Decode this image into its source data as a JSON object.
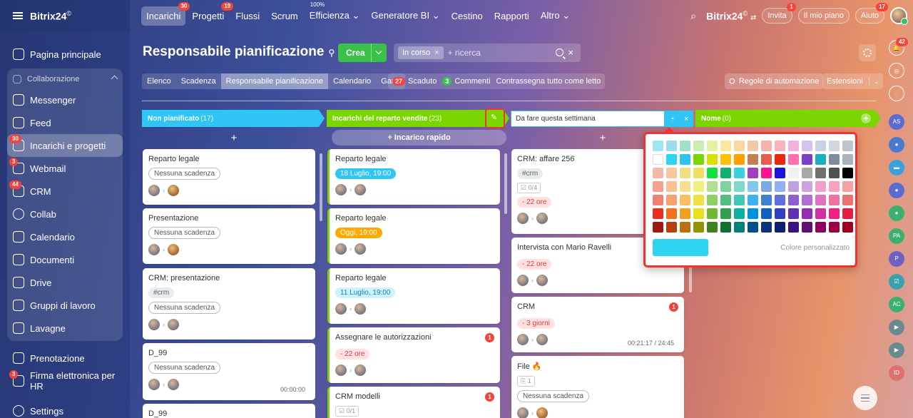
{
  "topbar": {
    "brand": "Bitrix24",
    "brand_sup": "©",
    "nav": [
      {
        "label": "Incarichi",
        "badge": "30",
        "active": true
      },
      {
        "label": "Progetti",
        "badge": "19"
      },
      {
        "label": "Flussi"
      },
      {
        "label": "Scrum"
      },
      {
        "label": "Efficienza",
        "pre": "100%",
        "dropdown": true
      },
      {
        "label": "Generatore BI",
        "dropdown": true
      },
      {
        "label": "Cestino"
      },
      {
        "label": "Rapporti"
      },
      {
        "label": "Altro",
        "dropdown": true
      }
    ],
    "right_brand": "Bitrix24",
    "invite_label": "Invita",
    "invite_badge": "1",
    "plan_label": "Il mio piano",
    "help_label": "Aiuto",
    "help_badge": "17"
  },
  "sidebar": {
    "items": [
      {
        "label": "Pagina principale",
        "icon": "home-icon"
      },
      {
        "label": "Collaborazione",
        "icon": "collab-icon",
        "group": true
      },
      {
        "label": "Messenger",
        "icon": "messenger-icon"
      },
      {
        "label": "Feed",
        "icon": "feed-icon"
      },
      {
        "label": "Incarichi e progetti",
        "icon": "tasks-icon",
        "badge": "30",
        "active": true
      },
      {
        "label": "Webmail",
        "icon": "mail-icon",
        "badge": "3"
      },
      {
        "label": "CRM",
        "icon": "crm-icon",
        "badge": "44"
      },
      {
        "label": "Collab",
        "icon": "collab2-icon"
      },
      {
        "label": "Calendario",
        "icon": "calendar-icon"
      },
      {
        "label": "Documenti",
        "icon": "documents-icon"
      },
      {
        "label": "Drive",
        "icon": "drive-icon"
      },
      {
        "label": "Gruppi di lavoro",
        "icon": "groups-icon"
      },
      {
        "label": "Lavagne",
        "icon": "boards-icon"
      },
      {
        "label": "Prenotazione",
        "icon": "booking-icon"
      },
      {
        "label": "Firma elettronica per HR",
        "icon": "sign-icon",
        "badge": "3"
      },
      {
        "label": "Settings",
        "icon": "settings-icon"
      }
    ]
  },
  "header": {
    "title": "Responsabile pianificazione",
    "create_label": "Crea",
    "filter_chip": "In corso",
    "search_placeholder": "+ ricerca"
  },
  "views": [
    "Elenco",
    "Scadenza",
    "Responsabile pianificazione",
    "Calendario",
    "Gantt"
  ],
  "alerts": {
    "overdue_count": "27",
    "overdue_label": "Scaduto",
    "comments_count": "3",
    "comments_label": "Commenti",
    "mark_read": "Contrassegna tutto come letto"
  },
  "toolbar": {
    "automation": "Regole di automazione",
    "extensions": "Estensioni"
  },
  "columns": [
    {
      "title": "Non pianificato",
      "count": "(17)",
      "color": "#2fc6f6"
    },
    {
      "title": "Incarichi del reparto vendite",
      "count": "(23)",
      "color": "#7bd500"
    },
    {
      "title": "Da fare questa settimana",
      "color": "#2fc6f6",
      "editing": true
    },
    {
      "title": "Nome",
      "count": "(0)",
      "color": "#7bd500"
    }
  ],
  "quick_task": "+ Incarico rapido",
  "cards_col1": [
    {
      "title": "Reparto legale",
      "tag": "Nessuna scadenza"
    },
    {
      "title": "Presentazione",
      "tag": "Nessuna scadenza"
    },
    {
      "title": "CRM: presentazione",
      "hashtag": "#crm",
      "tag": "Nessuna scadenza"
    },
    {
      "title": "D_99",
      "tag": "Nessuna scadenza",
      "timer": "00:00:00"
    },
    {
      "title": "D_99"
    }
  ],
  "cards_col2": [
    {
      "title": "Reparto legale",
      "tag": "18 Luglio, 19:00"
    },
    {
      "title": "Reparto legale",
      "tag": "Oggi, 19:00"
    },
    {
      "title": "Reparto legale",
      "tag": "11 Luglio, 19:00"
    },
    {
      "title": "Assegnare le autorizzazioni",
      "tag": "- 22 ore",
      "badge": "1"
    },
    {
      "title": "CRM modelli",
      "badge": "1",
      "sub": "0/1"
    }
  ],
  "cards_col3": [
    {
      "title": "CRM: affare 256",
      "hashtag": "#crm",
      "sub": "0/4",
      "tag": "- 22 ore"
    },
    {
      "title": "Intervista con Mario Ravelli",
      "tag": "- 22 ore"
    },
    {
      "title": "CRM",
      "tag": "- 3 giorni",
      "badge": "1",
      "timer": "00:21:17 / 24:45"
    },
    {
      "title": "File",
      "sub": "1",
      "tag": "Nessuna scadenza"
    }
  ],
  "picker": {
    "custom_label": "Colore personalizzato",
    "selected": "#2fd4f0",
    "swatches": [
      "#9fe6f5",
      "#9fdcea",
      "#9fe0c8",
      "#c9ecb0",
      "#e8f0a0",
      "#fbe7a0",
      "#fbd6a0",
      "#f2c9a8",
      "#f5b3ab",
      "#fab3bd",
      "#f0b3dc",
      "#d6c2ee",
      "#c9d3e8",
      "#d0d6dc",
      "#bcc4cc",
      "#ffffff",
      "#2fd4f0",
      "#2ec4ef",
      "#7bd500",
      "#d8e000",
      "#ffc000",
      "#ffa000",
      "#c08050",
      "#e85c50",
      "#e82810",
      "#ff70b0",
      "#7a40c8",
      "#1ab0c0",
      "#7f8c99",
      "#aab2ba",
      "#f5b8a8",
      "#f7c8a0",
      "#eee080",
      "#f0e060",
      "#10e040",
      "#10b070",
      "#3ad0e0",
      "#a040c0",
      "#ff1090",
      "#2010e0",
      "#f0f0f0",
      "#a8a8a8",
      "#707070",
      "#505050",
      "#000000",
      "#f5a090",
      "#fbc090",
      "#f5e090",
      "#f0f080",
      "#b0e090",
      "#80d0a0",
      "#80d8d0",
      "#80c8f0",
      "#80a8e0",
      "#90b0f0",
      "#c0a0e0",
      "#d0a0e0",
      "#f0a0d0",
      "#f8a0c0",
      "#f8a0a0",
      "#f08070",
      "#f8a070",
      "#f8c060",
      "#f0e040",
      "#90d060",
      "#50c080",
      "#40c8b8",
      "#40b0f0",
      "#4080d0",
      "#6070e0",
      "#9060d0",
      "#b070d0",
      "#e070c0",
      "#f070a0",
      "#f07070",
      "#e83020",
      "#f07020",
      "#f0a020",
      "#e8e020",
      "#70b830",
      "#30a050",
      "#10b0a0",
      "#0090e0",
      "#1060c0",
      "#3040c0",
      "#6030b0",
      "#9030b0",
      "#d030a0",
      "#f02080",
      "#e02040",
      "#a01810",
      "#b84010",
      "#b87010",
      "#989000",
      "#408020",
      "#107030",
      "#008078",
      "#005090",
      "#103080",
      "#102070",
      "#401080",
      "#601070",
      "#900060",
      "#a00040",
      "#a00020"
    ]
  }
}
